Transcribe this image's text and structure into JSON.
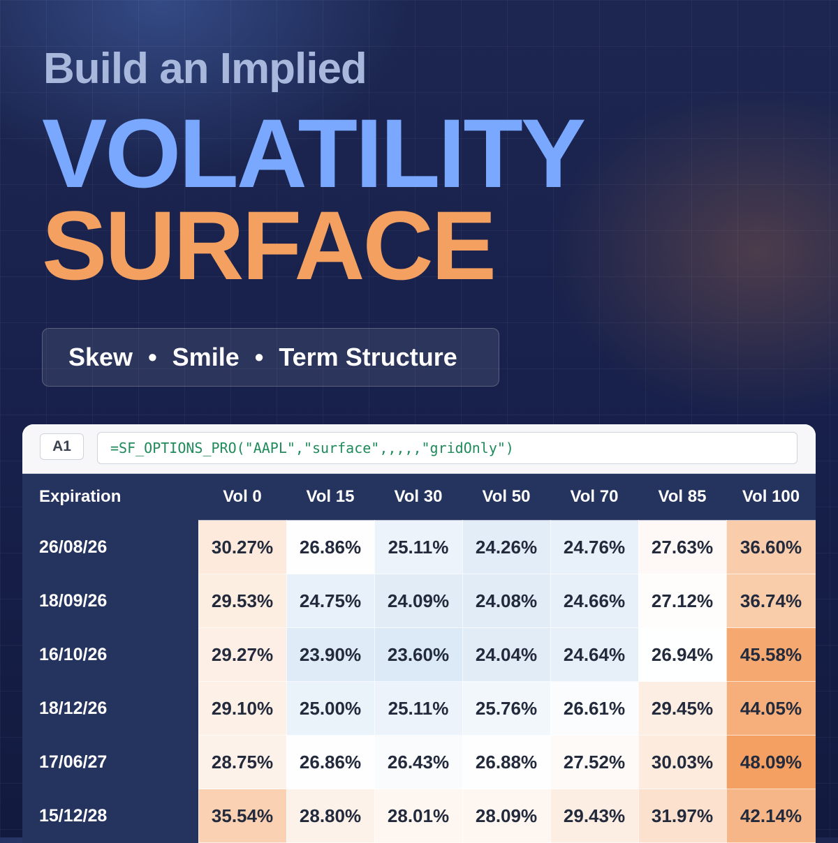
{
  "headline": {
    "line1": "Build an Implied",
    "line2": "VOLATILITY",
    "line3": "SURFACE"
  },
  "tags": [
    "Skew",
    "Smile",
    "Term Structure"
  ],
  "tag_separator": "•",
  "sheet": {
    "cell_ref": "A1",
    "formula": "=SF_OPTIONS_PRO(\"AAPL\",\"surface\",,,,,\"gridOnly\")",
    "table": {
      "headers": [
        "Expiration",
        "Vol 0",
        "Vol 15",
        "Vol 30",
        "Vol 50",
        "Vol 70",
        "Vol 85",
        "Vol 100"
      ],
      "rows": [
        {
          "expiration": "26/08/26",
          "values": [
            "30.27%",
            "26.86%",
            "25.11%",
            "24.26%",
            "24.76%",
            "27.63%",
            "36.60%"
          ]
        },
        {
          "expiration": "18/09/26",
          "values": [
            "29.53%",
            "24.75%",
            "24.09%",
            "24.08%",
            "24.66%",
            "27.12%",
            "36.74%"
          ]
        },
        {
          "expiration": "16/10/26",
          "values": [
            "29.27%",
            "23.90%",
            "23.60%",
            "24.04%",
            "24.64%",
            "26.94%",
            "45.58%"
          ]
        },
        {
          "expiration": "18/12/26",
          "values": [
            "29.10%",
            "25.00%",
            "25.11%",
            "25.76%",
            "26.61%",
            "29.45%",
            "44.05%"
          ]
        },
        {
          "expiration": "17/06/27",
          "values": [
            "28.75%",
            "26.86%",
            "26.43%",
            "26.88%",
            "27.52%",
            "30.03%",
            "48.09%"
          ]
        },
        {
          "expiration": "15/12/28",
          "values": [
            "35.54%",
            "28.80%",
            "28.01%",
            "28.09%",
            "29.43%",
            "31.97%",
            "42.14%"
          ]
        }
      ]
    }
  },
  "colors": {
    "headline_line1": "#a7b8dc",
    "headline_line2": "#7aa8ff",
    "headline_line3": "#f3a060",
    "header_bg": "#25335f",
    "formula_text": "#1f8a5a",
    "heat_low": "#dce9f6",
    "heat_mid": "#ffffff",
    "heat_high": "#f4a062"
  }
}
